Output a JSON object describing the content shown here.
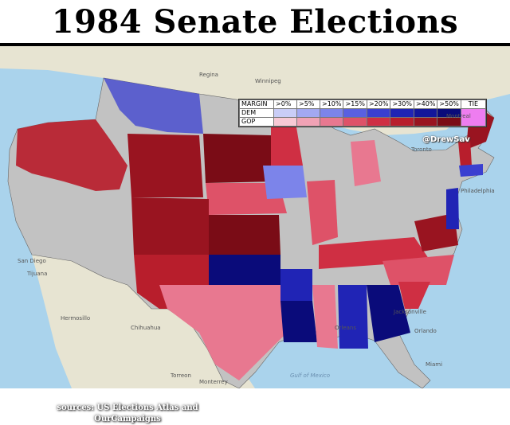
{
  "title": "1984 Senate Elections",
  "credit": "@DrewSav",
  "sources": {
    "line1": "sources: US Elections Atlas and",
    "line2": "OurCampaigns"
  },
  "legend": {
    "header_label": "MARGIN",
    "margins": [
      ">0%",
      ">5%",
      ">10%",
      ">15%",
      ">20%",
      ">30%",
      ">40%",
      ">50%"
    ],
    "tie_label": "TIE",
    "rows": [
      {
        "label": "DEM",
        "colors": [
          "#c9cdf7",
          "#a2a8f2",
          "#7c84ea",
          "#5960e0",
          "#3a3fd0",
          "#2024b5",
          "#13169a",
          "#0a0b7a"
        ]
      },
      {
        "label": "GOP",
        "colors": [
          "#f7c9d5",
          "#f0a2b5",
          "#e87890",
          "#de5268",
          "#cf2f43",
          "#b81e2c",
          "#991420",
          "#7a0c16"
        ]
      }
    ],
    "tie_color": "#ee7df0"
  },
  "colors": {
    "water": "#aad3ec",
    "land_foreign": "#e7e4d2",
    "no_election": "#c2c2c2"
  },
  "place_labels": [
    {
      "name": "San Diego",
      "kind": "city"
    },
    {
      "name": "Tijuana",
      "kind": "city"
    },
    {
      "name": "Hermosillo",
      "kind": "city"
    },
    {
      "name": "Chihuahua",
      "kind": "city"
    },
    {
      "name": "Torreon",
      "kind": "city"
    },
    {
      "name": "Monterrey",
      "kind": "city"
    },
    {
      "name": "Orleans",
      "kind": "city"
    },
    {
      "name": "Jacksonville",
      "kind": "city"
    },
    {
      "name": "Orlando",
      "kind": "city"
    },
    {
      "name": "Miami",
      "kind": "city"
    },
    {
      "name": "Montreal",
      "kind": "city"
    },
    {
      "name": "Toronto",
      "kind": "city"
    },
    {
      "name": "Philadelphia",
      "kind": "city"
    },
    {
      "name": "Regina",
      "kind": "city"
    },
    {
      "name": "Winnipeg",
      "kind": "city"
    },
    {
      "name": "Gulf of Mexico",
      "kind": "sea"
    }
  ]
}
